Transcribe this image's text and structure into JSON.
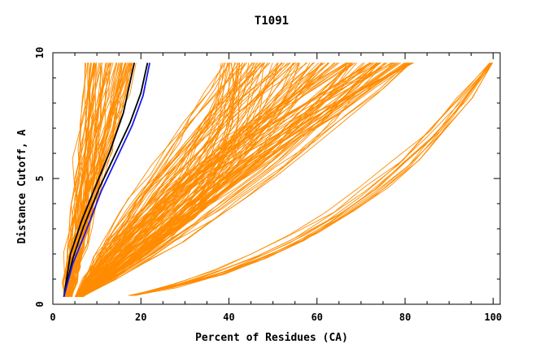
{
  "chart_data": {
    "type": "line",
    "title": "T1091",
    "xlabel": "Percent of Residues (CA)",
    "ylabel": "Distance Cutoff, A",
    "xlim": [
      0,
      101.6
    ],
    "ylim": [
      0,
      10
    ],
    "x_ticks": [
      0,
      20,
      40,
      60,
      80,
      100
    ],
    "y_ticks": [
      0,
      5,
      10
    ],
    "grid": false,
    "legend": "none",
    "colors": {
      "bundle": "#ff8c00",
      "highlight_black": "#000000",
      "highlight_blue": "#1a1aee",
      "axis": "#000000"
    },
    "groups": [
      {
        "color": "#ff8c00",
        "description_free": true,
        "series_count": 60,
        "start": [
          2.5,
          0.3
        ],
        "via": [
          6,
          3
        ],
        "end": [
          13,
          9.6
        ],
        "spread_via": 4,
        "spread_end": 6
      },
      {
        "color": "#ff8c00",
        "series_count": 140,
        "start": [
          5,
          0.3
        ],
        "via": [
          30,
          4
        ],
        "end": [
          60,
          9.6
        ],
        "spread_via": 18,
        "spread_end": 22
      },
      {
        "color": "#ff8c00",
        "series_count": 12,
        "start": [
          17,
          0.35
        ],
        "via": [
          70,
          2
        ],
        "end": [
          99.5,
          9.6
        ],
        "spread_via": 8,
        "spread_end": 0.4
      }
    ],
    "highlight_series": [
      {
        "color": "#000000",
        "x": [
          2.5,
          4,
          6.5,
          9.5,
          13,
          16,
          17.5,
          18.5
        ],
        "y": [
          0.3,
          2,
          3.3,
          4.6,
          6.1,
          7.6,
          8.8,
          9.6
        ]
      },
      {
        "color": "#000000",
        "x": [
          2.5,
          4.5,
          7,
          10.5,
          14,
          17.5,
          20,
          21.5
        ],
        "y": [
          0.3,
          1.8,
          3.1,
          4.6,
          5.9,
          7.2,
          8.4,
          9.6
        ]
      },
      {
        "color": "#1a1aee",
        "x": [
          2.5,
          4.5,
          7.5,
          11,
          14.5,
          18,
          20.5,
          22
        ],
        "y": [
          0.3,
          1.6,
          2.9,
          4.5,
          5.8,
          7.1,
          8.3,
          9.6
        ]
      }
    ]
  }
}
